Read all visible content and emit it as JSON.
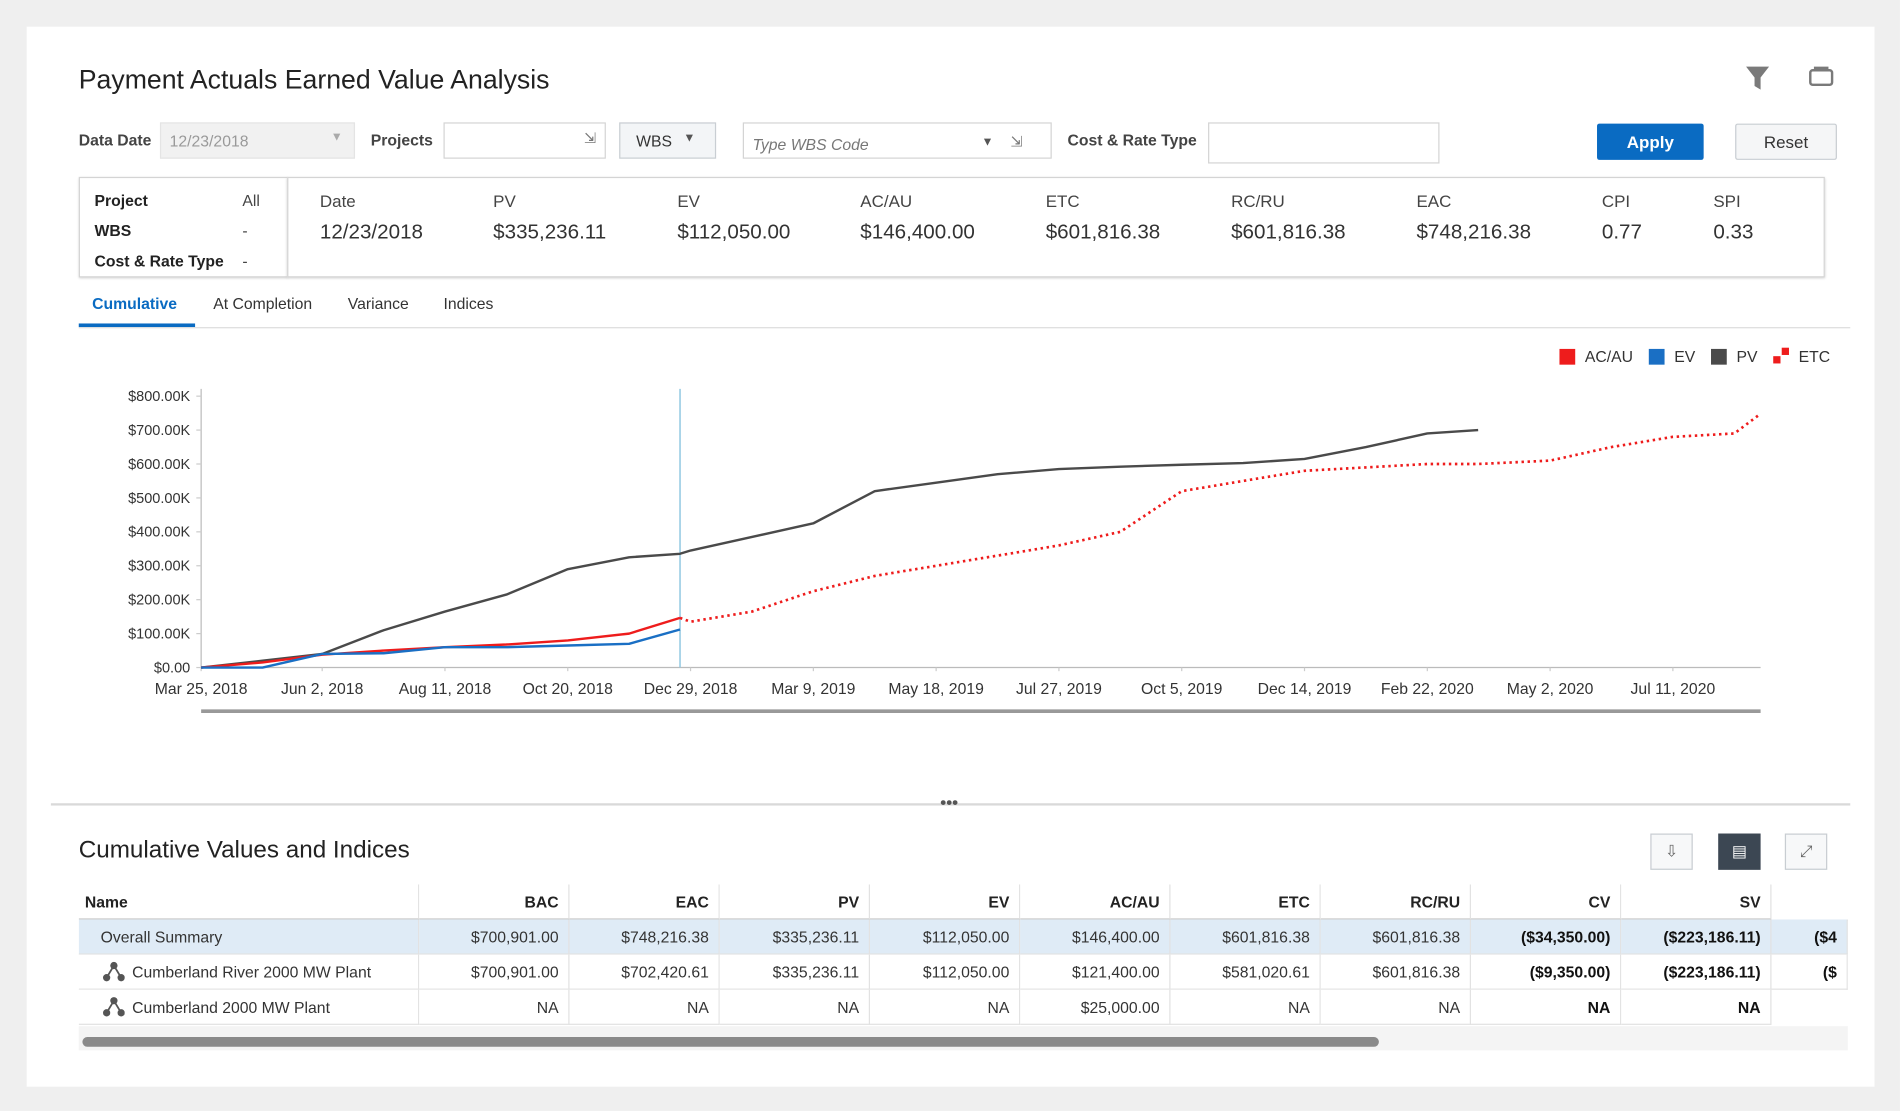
{
  "header": {
    "title": "Payment Actuals Earned Value Analysis"
  },
  "filters": {
    "data_date_label": "Data Date",
    "data_date": "12/23/2018",
    "projects_label": "Projects",
    "wbs": "WBS",
    "wbs_placeholder": "Type WBS Code",
    "cost_rate_label": "Cost & Rate Type",
    "apply": "Apply",
    "reset": "Reset"
  },
  "context": [
    [
      "Project",
      "All"
    ],
    [
      "WBS",
      "-"
    ],
    [
      "Cost & Rate Type",
      "-"
    ]
  ],
  "summary": {
    "labels": [
      "Date",
      "PV",
      "EV",
      "AC/AU",
      "ETC",
      "RC/RU",
      "EAC",
      "CPI",
      "SPI"
    ],
    "values": [
      "12/23/2018",
      "$335,236.11",
      "$112,050.00",
      "$146,400.00",
      "$601,816.38",
      "$601,816.38",
      "$748,216.38",
      "0.77",
      "0.33"
    ]
  },
  "tabs": [
    "Cumulative",
    "At Completion",
    "Variance",
    "Indices"
  ],
  "chart_data": {
    "type": "line",
    "x": [
      "2018-03-25",
      "2018-04-29",
      "2018-06-02",
      "2018-07-07",
      "2018-08-11",
      "2018-09-15",
      "2018-10-20",
      "2018-11-24",
      "2018-12-23",
      "2018-12-29",
      "2019-02-02",
      "2019-03-09",
      "2019-04-13",
      "2019-05-18",
      "2019-06-22",
      "2019-07-27",
      "2019-08-31",
      "2019-10-05",
      "2019-11-09",
      "2019-12-14",
      "2020-01-18",
      "2020-02-22",
      "2020-03-22",
      "2020-05-02",
      "2020-06-06",
      "2020-07-11",
      "2020-08-15",
      "2020-08-30"
    ],
    "series": [
      {
        "name": "AC/AU",
        "color": "#ee1c1c",
        "style": "solid",
        "values": [
          0,
          15000,
          38000,
          50000,
          60000,
          68000,
          80000,
          100000,
          146400,
          null,
          null,
          null,
          null,
          null,
          null,
          null,
          null,
          null,
          null,
          null,
          null,
          null,
          null,
          null,
          null,
          null,
          null,
          null
        ]
      },
      {
        "name": "EV",
        "color": "#1a6fc4",
        "style": "solid",
        "values": [
          0,
          0,
          40000,
          42000,
          60000,
          60000,
          65000,
          70000,
          112050,
          null,
          null,
          null,
          null,
          null,
          null,
          null,
          null,
          null,
          null,
          null,
          null,
          null,
          null,
          null,
          null,
          null,
          null,
          null
        ]
      },
      {
        "name": "PV",
        "color": "#4a4a4a",
        "style": "solid",
        "values": [
          0,
          20000,
          40000,
          110000,
          165000,
          215000,
          290000,
          325000,
          335236,
          345000,
          385000,
          425000,
          520000,
          545000,
          570000,
          585000,
          592000,
          598000,
          603000,
          615000,
          650000,
          690000,
          700000,
          null,
          null,
          null,
          null,
          null
        ]
      },
      {
        "name": "ETC",
        "color": "#ee1c1c",
        "style": "dotted",
        "values": [
          null,
          null,
          null,
          null,
          null,
          null,
          null,
          null,
          146400,
          135000,
          165000,
          225000,
          270000,
          300000,
          330000,
          360000,
          400000,
          520000,
          550000,
          580000,
          590000,
          600000,
          600000,
          610000,
          650000,
          680000,
          690000,
          748216
        ]
      }
    ],
    "data_date_line": "2018-12-23",
    "xlim": [
      "2018-03-25",
      "2020-08-30"
    ],
    "xticks": [
      {
        "value": "2018-03-25",
        "label": "Mar 25, 2018"
      },
      {
        "value": "2018-06-02",
        "label": "Jun 2, 2018"
      },
      {
        "value": "2018-08-11",
        "label": "Aug 11, 2018"
      },
      {
        "value": "2018-10-20",
        "label": "Oct 20, 2018"
      },
      {
        "value": "2018-12-29",
        "label": "Dec 29, 2018"
      },
      {
        "value": "2019-03-09",
        "label": "Mar 9, 2019"
      },
      {
        "value": "2019-05-18",
        "label": "May 18, 2019"
      },
      {
        "value": "2019-07-27",
        "label": "Jul 27, 2019"
      },
      {
        "value": "2019-10-05",
        "label": "Oct 5, 2019"
      },
      {
        "value": "2019-12-14",
        "label": "Dec 14, 2019"
      },
      {
        "value": "2020-02-22",
        "label": "Feb 22, 2020"
      },
      {
        "value": "2020-05-02",
        "label": "May 2, 2020"
      },
      {
        "value": "2020-07-11",
        "label": "Jul 11, 2020"
      }
    ],
    "ylim": [
      0,
      800000
    ],
    "yticks": [
      {
        "value": 0,
        "label": "$0.00"
      },
      {
        "value": 100000,
        "label": "$100.00K"
      },
      {
        "value": 200000,
        "label": "$200.00K"
      },
      {
        "value": 300000,
        "label": "$300.00K"
      },
      {
        "value": 400000,
        "label": "$400.00K"
      },
      {
        "value": 500000,
        "label": "$500.00K"
      },
      {
        "value": 600000,
        "label": "$600.00K"
      },
      {
        "value": 700000,
        "label": "$700.00K"
      },
      {
        "value": 800000,
        "label": "$800.00K"
      }
    ],
    "grid": false,
    "legend": "top-right"
  },
  "table": {
    "title": "Cumulative Values and Indices",
    "columns": [
      "Name",
      "BAC",
      "EAC",
      "PV",
      "EV",
      "AC/AU",
      "ETC",
      "RC/RU",
      "CV",
      "SV"
    ],
    "rows": [
      [
        "Overall Summary",
        "$700,901.00",
        "$748,216.38",
        "$335,236.11",
        "$112,050.00",
        "$146,400.00",
        "$601,816.38",
        "$601,816.38",
        "($34,350.00)",
        "($223,186.11)",
        "($4"
      ],
      [
        "Cumberland River 2000 MW Plant",
        "$700,901.00",
        "$702,420.61",
        "$335,236.11",
        "$112,050.00",
        "$121,400.00",
        "$581,020.61",
        "$601,816.38",
        "($9,350.00)",
        "($223,186.11)",
        "($"
      ],
      [
        "Cumberland 2000 MW Plant",
        "NA",
        "NA",
        "NA",
        "NA",
        "$25,000.00",
        "NA",
        "NA",
        "NA",
        "NA"
      ]
    ]
  }
}
